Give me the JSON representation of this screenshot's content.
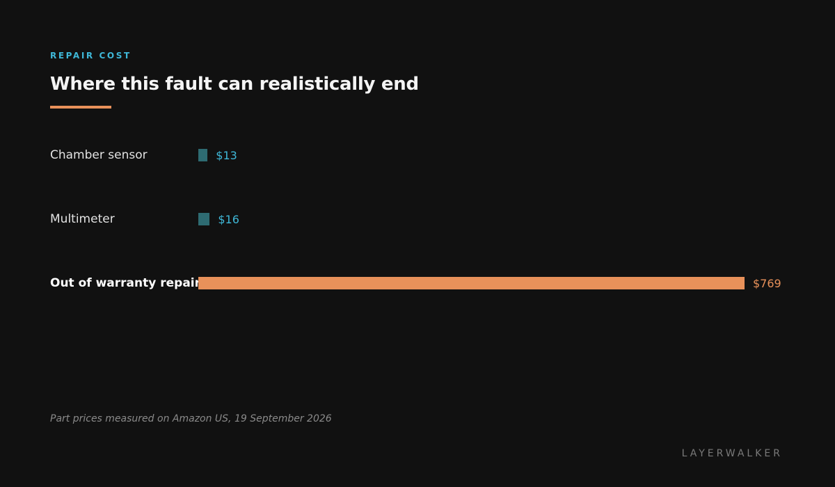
{
  "header": {
    "eyebrow": "REPAIR COST",
    "title": "Where this fault can realistically end"
  },
  "colors": {
    "accent": "#3fb8d8",
    "bar_minor": "#2e6b72",
    "bar_major": "#e8915a",
    "background": "#111111"
  },
  "chart_data": {
    "type": "bar",
    "orientation": "horizontal",
    "categories": [
      "Chamber sensor",
      "Multimeter",
      "Out of warranty repair"
    ],
    "values": [
      13,
      16,
      769
    ],
    "value_labels": [
      "$13",
      "$16",
      "$769"
    ],
    "highlighted": [
      false,
      false,
      true
    ],
    "title": "Where this fault can realistically end",
    "xlabel": "",
    "ylabel": "",
    "xlim": [
      0,
      769
    ],
    "grid": false,
    "legend": "none"
  },
  "footer": {
    "note": "Part prices measured on Amazon US, 19 September 2026",
    "brand": "LAYERWALKER"
  }
}
